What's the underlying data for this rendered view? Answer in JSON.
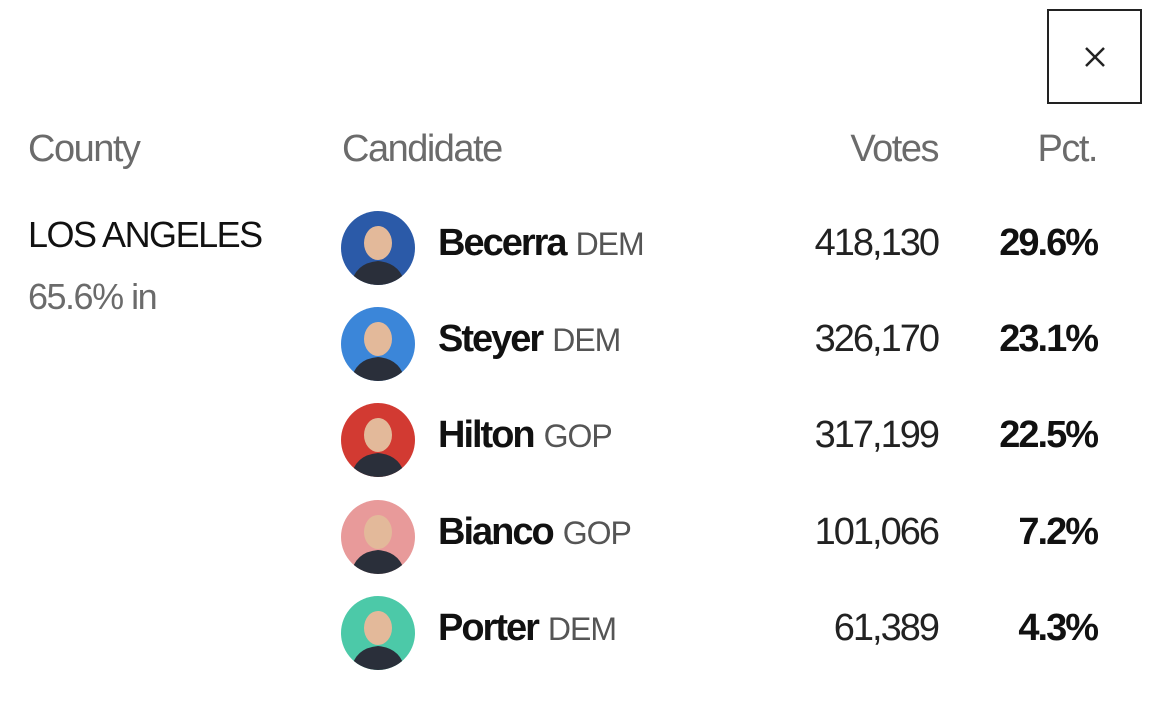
{
  "header": {
    "county": "County",
    "candidate": "Candidate",
    "votes": "Votes",
    "pct": "Pct."
  },
  "county": {
    "name": "LOS ANGELES",
    "reporting": "65.6% in"
  },
  "table": {
    "rows": [
      {
        "name": "Becerra",
        "party": "DEM",
        "votes": "418,130",
        "pct": "29.6%"
      },
      {
        "name": "Steyer",
        "party": "DEM",
        "votes": "326,170",
        "pct": "23.1%"
      },
      {
        "name": "Hilton",
        "party": "GOP",
        "votes": "317,199",
        "pct": "22.5%"
      },
      {
        "name": "Bianco",
        "party": "GOP",
        "votes": "101,066",
        "pct": "7.2%"
      },
      {
        "name": "Porter",
        "party": "DEM",
        "votes": "61,389",
        "pct": "4.3%"
      }
    ]
  }
}
